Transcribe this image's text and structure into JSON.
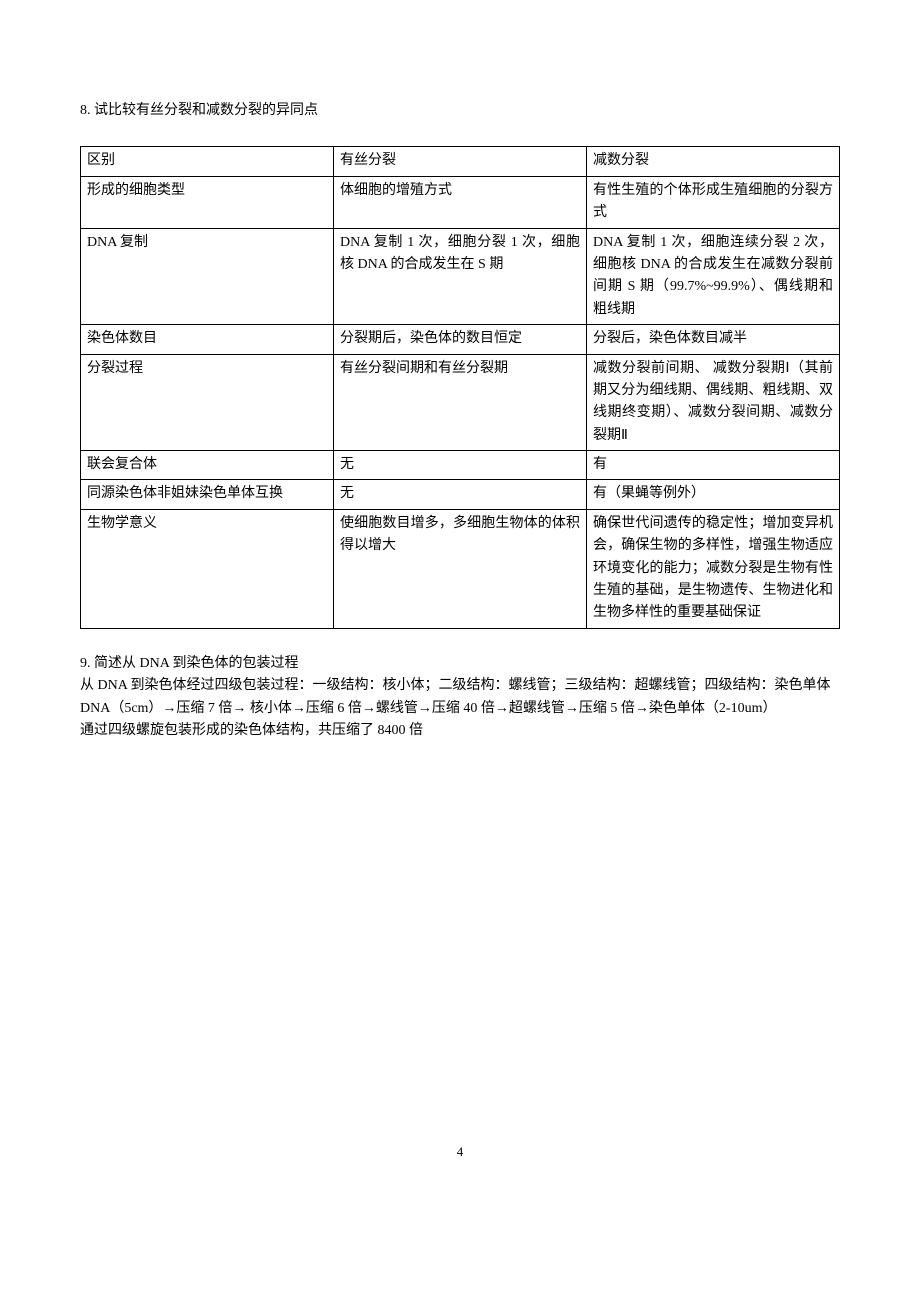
{
  "q8": {
    "title": "8.  试比较有丝分裂和减数分裂的异同点",
    "headers": [
      "区别",
      "有丝分裂",
      "减数分裂"
    ],
    "rows": [
      {
        "c1": "形成的细胞类型",
        "c2": "体细胞的增殖方式",
        "c3": "有性生殖的个体形成生殖细胞的分裂方式"
      },
      {
        "c1": "DNA 复制",
        "c2": "DNA 复制 1 次，细胞分裂 1 次，细胞核 DNA 的合成发生在 S 期",
        "c3": "DNA 复制 1 次，细胞连续分裂 2 次，细胞核 DNA 的合成发生在减数分裂前间期 S 期（99.7%~99.9%）、偶线期和粗线期"
      },
      {
        "c1": "染色体数目",
        "c2": "分裂期后，染色体的数目恒定",
        "c3": "分裂后，染色体数目减半"
      },
      {
        "c1": "分裂过程",
        "c2": "有丝分裂间期和有丝分裂期",
        "c3": "减数分裂前间期、 减数分裂期Ⅰ（其前期又分为细线期、偶线期、粗线期、双线期终变期）、减数分裂间期、减数分裂期Ⅱ"
      },
      {
        "c1": "联会复合体",
        "c2": "无",
        "c3": "有"
      },
      {
        "c1": "同源染色体非姐妹染色单体互换",
        "c2": "无",
        "c3": "有（果蝇等例外）"
      },
      {
        "c1": "生物学意义",
        "c2": "使细胞数目增多，多细胞生物体的体积得以增大",
        "c3": "确保世代间遗传的稳定性；增加变异机会，确保生物的多样性，增强生物适应环境变化的能力；减数分裂是生物有性生殖的基础，是生物遗传、生物进化和生物多样性的重要基础保证"
      }
    ]
  },
  "q9": {
    "title": "9.  简述从 DNA 到染色体的包装过程",
    "line1": "从 DNA 到染色体经过四级包装过程：一级结构：核小体；二级结构：螺线管；三级结构：超螺线管；四级结构：染色单体",
    "line2": "DNA（5cm）→压缩 7 倍→  核小体→压缩 6 倍→螺线管→压缩 40 倍→超螺线管→压缩 5 倍→染色单体（2-10um）",
    "line3": "通过四级螺旋包装形成的染色体结构，共压缩了 8400 倍"
  },
  "pageNumber": "4"
}
